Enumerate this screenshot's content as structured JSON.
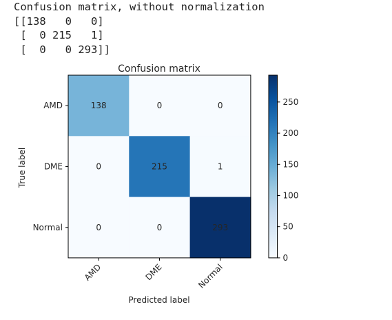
{
  "console": {
    "lines": [
      "Confusion matrix, without normalization",
      "[[138   0   0]",
      " [  0 215   1]",
      " [  0   0 293]]"
    ]
  },
  "chart_data": {
    "type": "heatmap",
    "title": "Confusion matrix",
    "xlabel": "Predicted label",
    "ylabel": "True label",
    "x_categories": [
      "AMD",
      "DME",
      "Normal"
    ],
    "y_categories": [
      "AMD",
      "DME",
      "Normal"
    ],
    "values": [
      [
        138,
        0,
        0
      ],
      [
        0,
        215,
        1
      ],
      [
        0,
        0,
        293
      ]
    ],
    "colormap": "Blues",
    "color_range": [
      0,
      293
    ],
    "colorbar_ticks": [
      0,
      50,
      100,
      150,
      200,
      250
    ],
    "colorbar_tick_labels": [
      "0",
      "50",
      "100",
      "150",
      "200",
      "250"
    ],
    "x_tick_rotation_deg": 45,
    "grid": false,
    "colors": {
      "low": "#f7fbff",
      "high": "#08306b"
    }
  }
}
